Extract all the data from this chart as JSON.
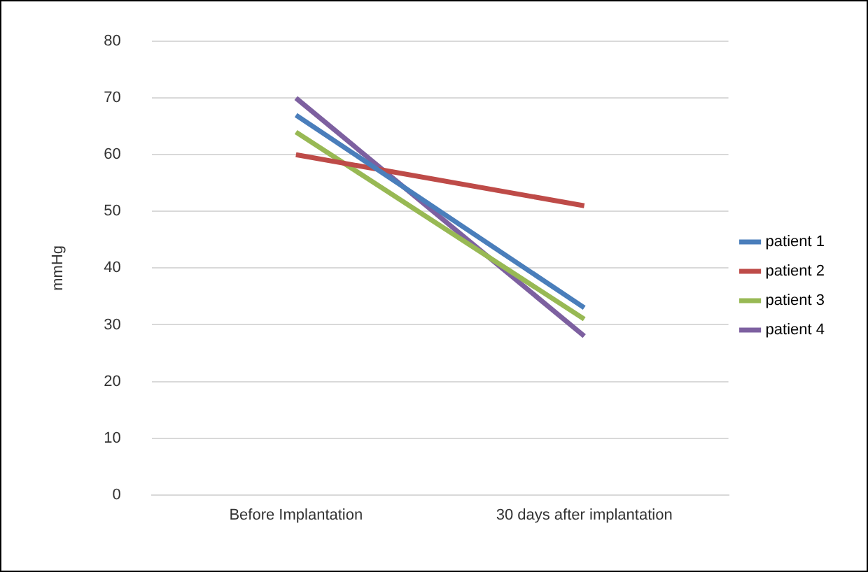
{
  "chart_data": {
    "type": "line",
    "ylabel": "mmHg",
    "categories": [
      "Before Implantation",
      "30 days after implantation"
    ],
    "series": [
      {
        "name": "patient 1",
        "color": "#4a7ebb",
        "values": [
          67,
          33
        ]
      },
      {
        "name": "patient 2",
        "color": "#be4b48",
        "values": [
          60,
          51
        ]
      },
      {
        "name": "patient 3",
        "color": "#98b954",
        "values": [
          64,
          31
        ]
      },
      {
        "name": "patient 4",
        "color": "#7d60a0",
        "values": [
          70,
          28
        ]
      }
    ],
    "ylim": [
      0,
      80
    ],
    "yticks": [
      0,
      10,
      20,
      30,
      40,
      50,
      60,
      70,
      80
    ],
    "grid": "y",
    "legend": "right",
    "marker": "none",
    "line_style": "solid"
  }
}
